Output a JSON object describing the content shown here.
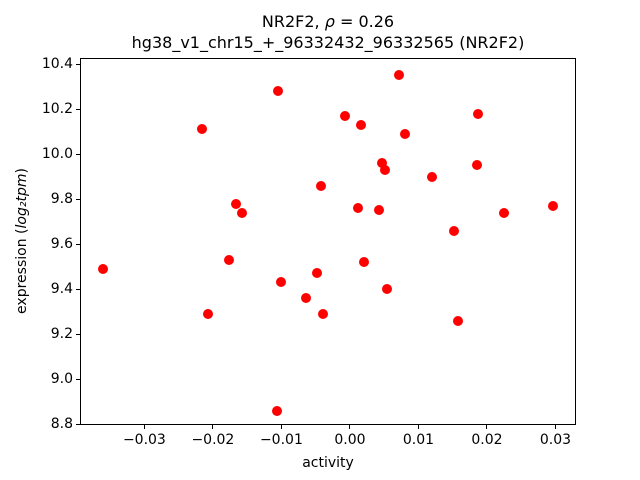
{
  "title": {
    "line1_prefix": "NR2F2, ",
    "rho_symbol": "ρ",
    "line1_suffix": " = 0.26",
    "line2": "hg38_v1_chr15_+_96332432_96332565 (NR2F2)"
  },
  "axes": {
    "x_label": "activity",
    "y_label_prefix": "expression (",
    "y_label_math": "log₂tpm",
    "y_label_suffix": ")"
  },
  "chart_data": {
    "type": "scatter",
    "title": "NR2F2, ρ = 0.26\nhg38_v1_chr15_+_96332432_96332565 (NR2F2)",
    "xlabel": "activity",
    "ylabel": "expression (log₂tpm)",
    "xlim": [
      -0.0394,
      0.033
    ],
    "ylim": [
      8.796,
      10.427
    ],
    "xticks": [
      -0.03,
      -0.02,
      -0.01,
      0.0,
      0.01,
      0.02,
      0.03
    ],
    "xtick_labels": [
      "−0.03",
      "−0.02",
      "−0.01",
      "0.00",
      "0.01",
      "0.02",
      "0.03"
    ],
    "yticks": [
      8.8,
      9.0,
      9.2,
      9.4,
      9.6,
      9.8,
      10.0,
      10.2,
      10.4
    ],
    "ytick_labels": [
      "8.8",
      "9.0",
      "9.2",
      "9.4",
      "9.6",
      "9.8",
      "10.0",
      "10.2",
      "10.4"
    ],
    "grid": false,
    "legend": null,
    "marker_color": "#ff0000",
    "correlation_rho": 0.26,
    "points": [
      [
        -0.0361,
        9.49
      ],
      [
        -0.0216,
        10.11
      ],
      [
        -0.0207,
        9.29
      ],
      [
        -0.0176,
        9.53
      ],
      [
        -0.0166,
        9.78
      ],
      [
        -0.0158,
        9.74
      ],
      [
        -0.0107,
        8.86
      ],
      [
        -0.0105,
        10.28
      ],
      [
        -0.0101,
        9.43
      ],
      [
        -0.0064,
        9.36
      ],
      [
        -0.0048,
        9.47
      ],
      [
        -0.0042,
        9.86
      ],
      [
        -0.0039,
        9.29
      ],
      [
        -0.0007,
        10.17
      ],
      [
        0.0012,
        9.76
      ],
      [
        0.0016,
        10.13
      ],
      [
        0.002,
        9.52
      ],
      [
        0.0043,
        9.75
      ],
      [
        0.0047,
        9.96
      ],
      [
        0.0051,
        9.93
      ],
      [
        0.0054,
        9.4
      ],
      [
        0.0072,
        10.35
      ],
      [
        0.008,
        10.09
      ],
      [
        0.012,
        9.9
      ],
      [
        0.0152,
        9.66
      ],
      [
        0.0158,
        9.26
      ],
      [
        0.0185,
        9.95
      ],
      [
        0.0187,
        10.18
      ],
      [
        0.0225,
        9.74
      ],
      [
        0.0296,
        9.77
      ]
    ]
  }
}
